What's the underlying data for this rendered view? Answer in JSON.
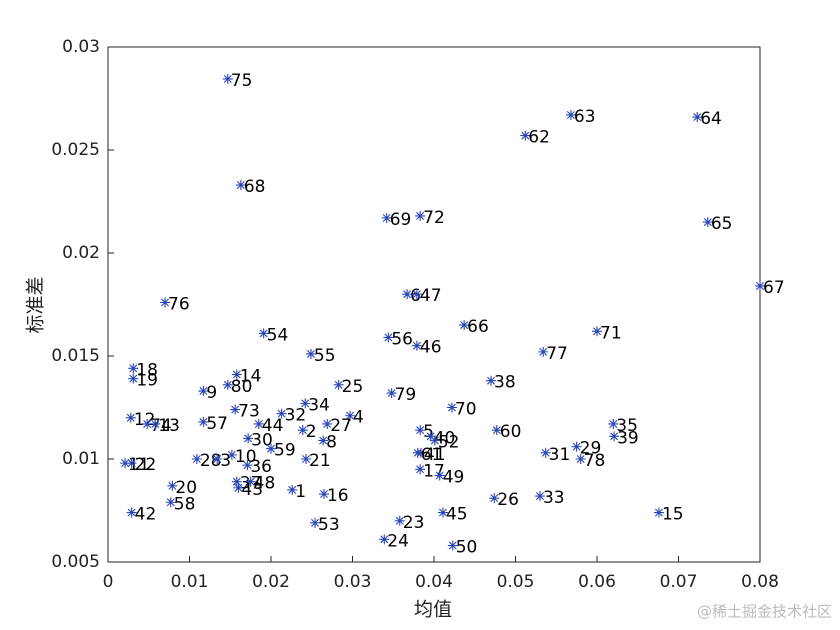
{
  "chart_data": {
    "type": "scatter",
    "x_label": "均值",
    "y_label": "标准差",
    "watermark": "@稀土掘金技术社区",
    "xlim": [
      0,
      0.08
    ],
    "ylim": [
      0.005,
      0.03
    ],
    "xticks": [
      0,
      0.01,
      0.02,
      0.03,
      0.04,
      0.05,
      0.06,
      0.07,
      0.08
    ],
    "yticks": [
      0.005,
      0.01,
      0.015,
      0.02,
      0.025,
      0.03
    ],
    "color": "#2a45b8",
    "labels": [
      "75",
      "63",
      "64",
      "62",
      "68",
      "69",
      "72",
      "65",
      "67",
      "76",
      "6",
      "47",
      "66",
      "71",
      "54",
      "56",
      "46",
      "55",
      "77",
      "18",
      "19",
      "14",
      "80",
      "38",
      "9",
      "25",
      "79",
      "34",
      "70",
      "73",
      "32",
      "4",
      "12",
      "74",
      "13",
      "57",
      "44",
      "27",
      "35",
      "2",
      "5",
      "60",
      "39",
      "30",
      "8",
      "40",
      "52",
      "29",
      "59",
      "41",
      "61",
      "31",
      "10",
      "21",
      "78",
      "11",
      "22",
      "28",
      "3",
      "36",
      "17",
      "49",
      "37",
      "48",
      "20",
      "43",
      "1",
      "16",
      "26",
      "33",
      "58",
      "42",
      "15",
      "45",
      "53",
      "23",
      "24",
      "50"
    ],
    "x": [
      0.0147,
      0.0568,
      0.0723,
      0.0512,
      0.0163,
      0.0342,
      0.0383,
      0.0736,
      0.08,
      0.007,
      0.0367,
      0.0379,
      0.0437,
      0.06,
      0.0191,
      0.0344,
      0.0379,
      0.0249,
      0.0534,
      0.0031,
      0.0031,
      0.0158,
      0.0147,
      0.047,
      0.0117,
      0.0283,
      0.0348,
      0.0242,
      0.0422,
      0.0156,
      0.0213,
      0.0297,
      0.0028,
      0.0048,
      0.0058,
      0.0117,
      0.0185,
      0.0269,
      0.062,
      0.0239,
      0.0383,
      0.0477,
      0.0621,
      0.0172,
      0.0264,
      0.0396,
      0.0401,
      0.0575,
      0.02,
      0.0384,
      0.038,
      0.0537,
      0.0152,
      0.0243,
      0.058,
      0.0021,
      0.0029,
      0.0109,
      0.0134,
      0.0171,
      0.0383,
      0.0407,
      0.0158,
      0.0175,
      0.0079,
      0.016,
      0.0226,
      0.0265,
      0.0474,
      0.053,
      0.0077,
      0.0029,
      0.0676,
      0.0411,
      0.0254,
      0.0358,
      0.0339,
      0.0423
    ],
    "values": [
      0.02845,
      0.0267,
      0.0266,
      0.0257,
      0.0233,
      0.0217,
      0.0218,
      0.0215,
      0.0184,
      0.0176,
      0.018,
      0.018,
      0.0165,
      0.0162,
      0.0161,
      0.0159,
      0.0155,
      0.0151,
      0.0152,
      0.0144,
      0.0139,
      0.0141,
      0.0136,
      0.0138,
      0.0133,
      0.0136,
      0.0132,
      0.0127,
      0.0125,
      0.0124,
      0.0122,
      0.0121,
      0.012,
      0.0117,
      0.0117,
      0.0118,
      0.0117,
      0.0117,
      0.0117,
      0.0114,
      0.0114,
      0.0114,
      0.0111,
      0.011,
      0.0109,
      0.0111,
      0.0109,
      0.0106,
      0.0105,
      0.0103,
      0.0103,
      0.0103,
      0.0102,
      0.01,
      0.01,
      0.0098,
      0.0098,
      0.01,
      0.01,
      0.0097,
      0.0095,
      0.0092,
      0.0089,
      0.0089,
      0.0087,
      0.0086,
      0.0085,
      0.0083,
      0.0081,
      0.0082,
      0.0079,
      0.0074,
      0.0074,
      0.0074,
      0.0069,
      0.007,
      0.0061,
      0.0058
    ]
  }
}
